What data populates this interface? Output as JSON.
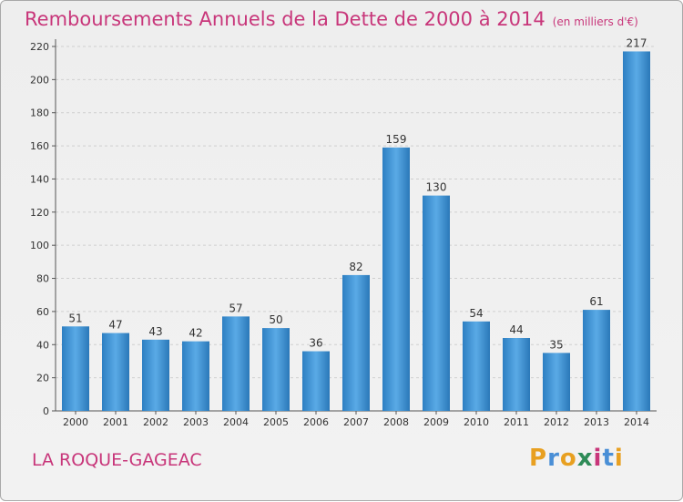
{
  "title": "Remboursements Annuels de la Dette de 2000 à 2014",
  "unit_label": "(en milliers d'€)",
  "commune": "LA ROQUE-GAGEAC",
  "logo": {
    "letters": [
      "P",
      "r",
      "o",
      "x",
      "i",
      "t",
      "i"
    ],
    "colors": [
      "#e8a021",
      "#4a8fd6",
      "#e8a021",
      "#2e8b57",
      "#c8367a",
      "#4a8fd6",
      "#e8a021"
    ]
  },
  "colors": {
    "title": "#c8367a",
    "bar": "#3b8fd0",
    "bar_light": "#5aaae6",
    "bar_dark": "#2a78b8"
  },
  "chart_data": {
    "type": "bar",
    "categories": [
      "2000",
      "2001",
      "2002",
      "2003",
      "2004",
      "2005",
      "2006",
      "2007",
      "2008",
      "2009",
      "2010",
      "2011",
      "2012",
      "2013",
      "2014"
    ],
    "values": [
      51,
      47,
      43,
      42,
      57,
      50,
      36,
      82,
      159,
      130,
      54,
      44,
      35,
      61,
      217
    ],
    "ylim": [
      0,
      220
    ],
    "yticks": [
      0,
      20,
      40,
      60,
      80,
      100,
      120,
      140,
      160,
      180,
      200,
      220
    ],
    "grid": true
  }
}
